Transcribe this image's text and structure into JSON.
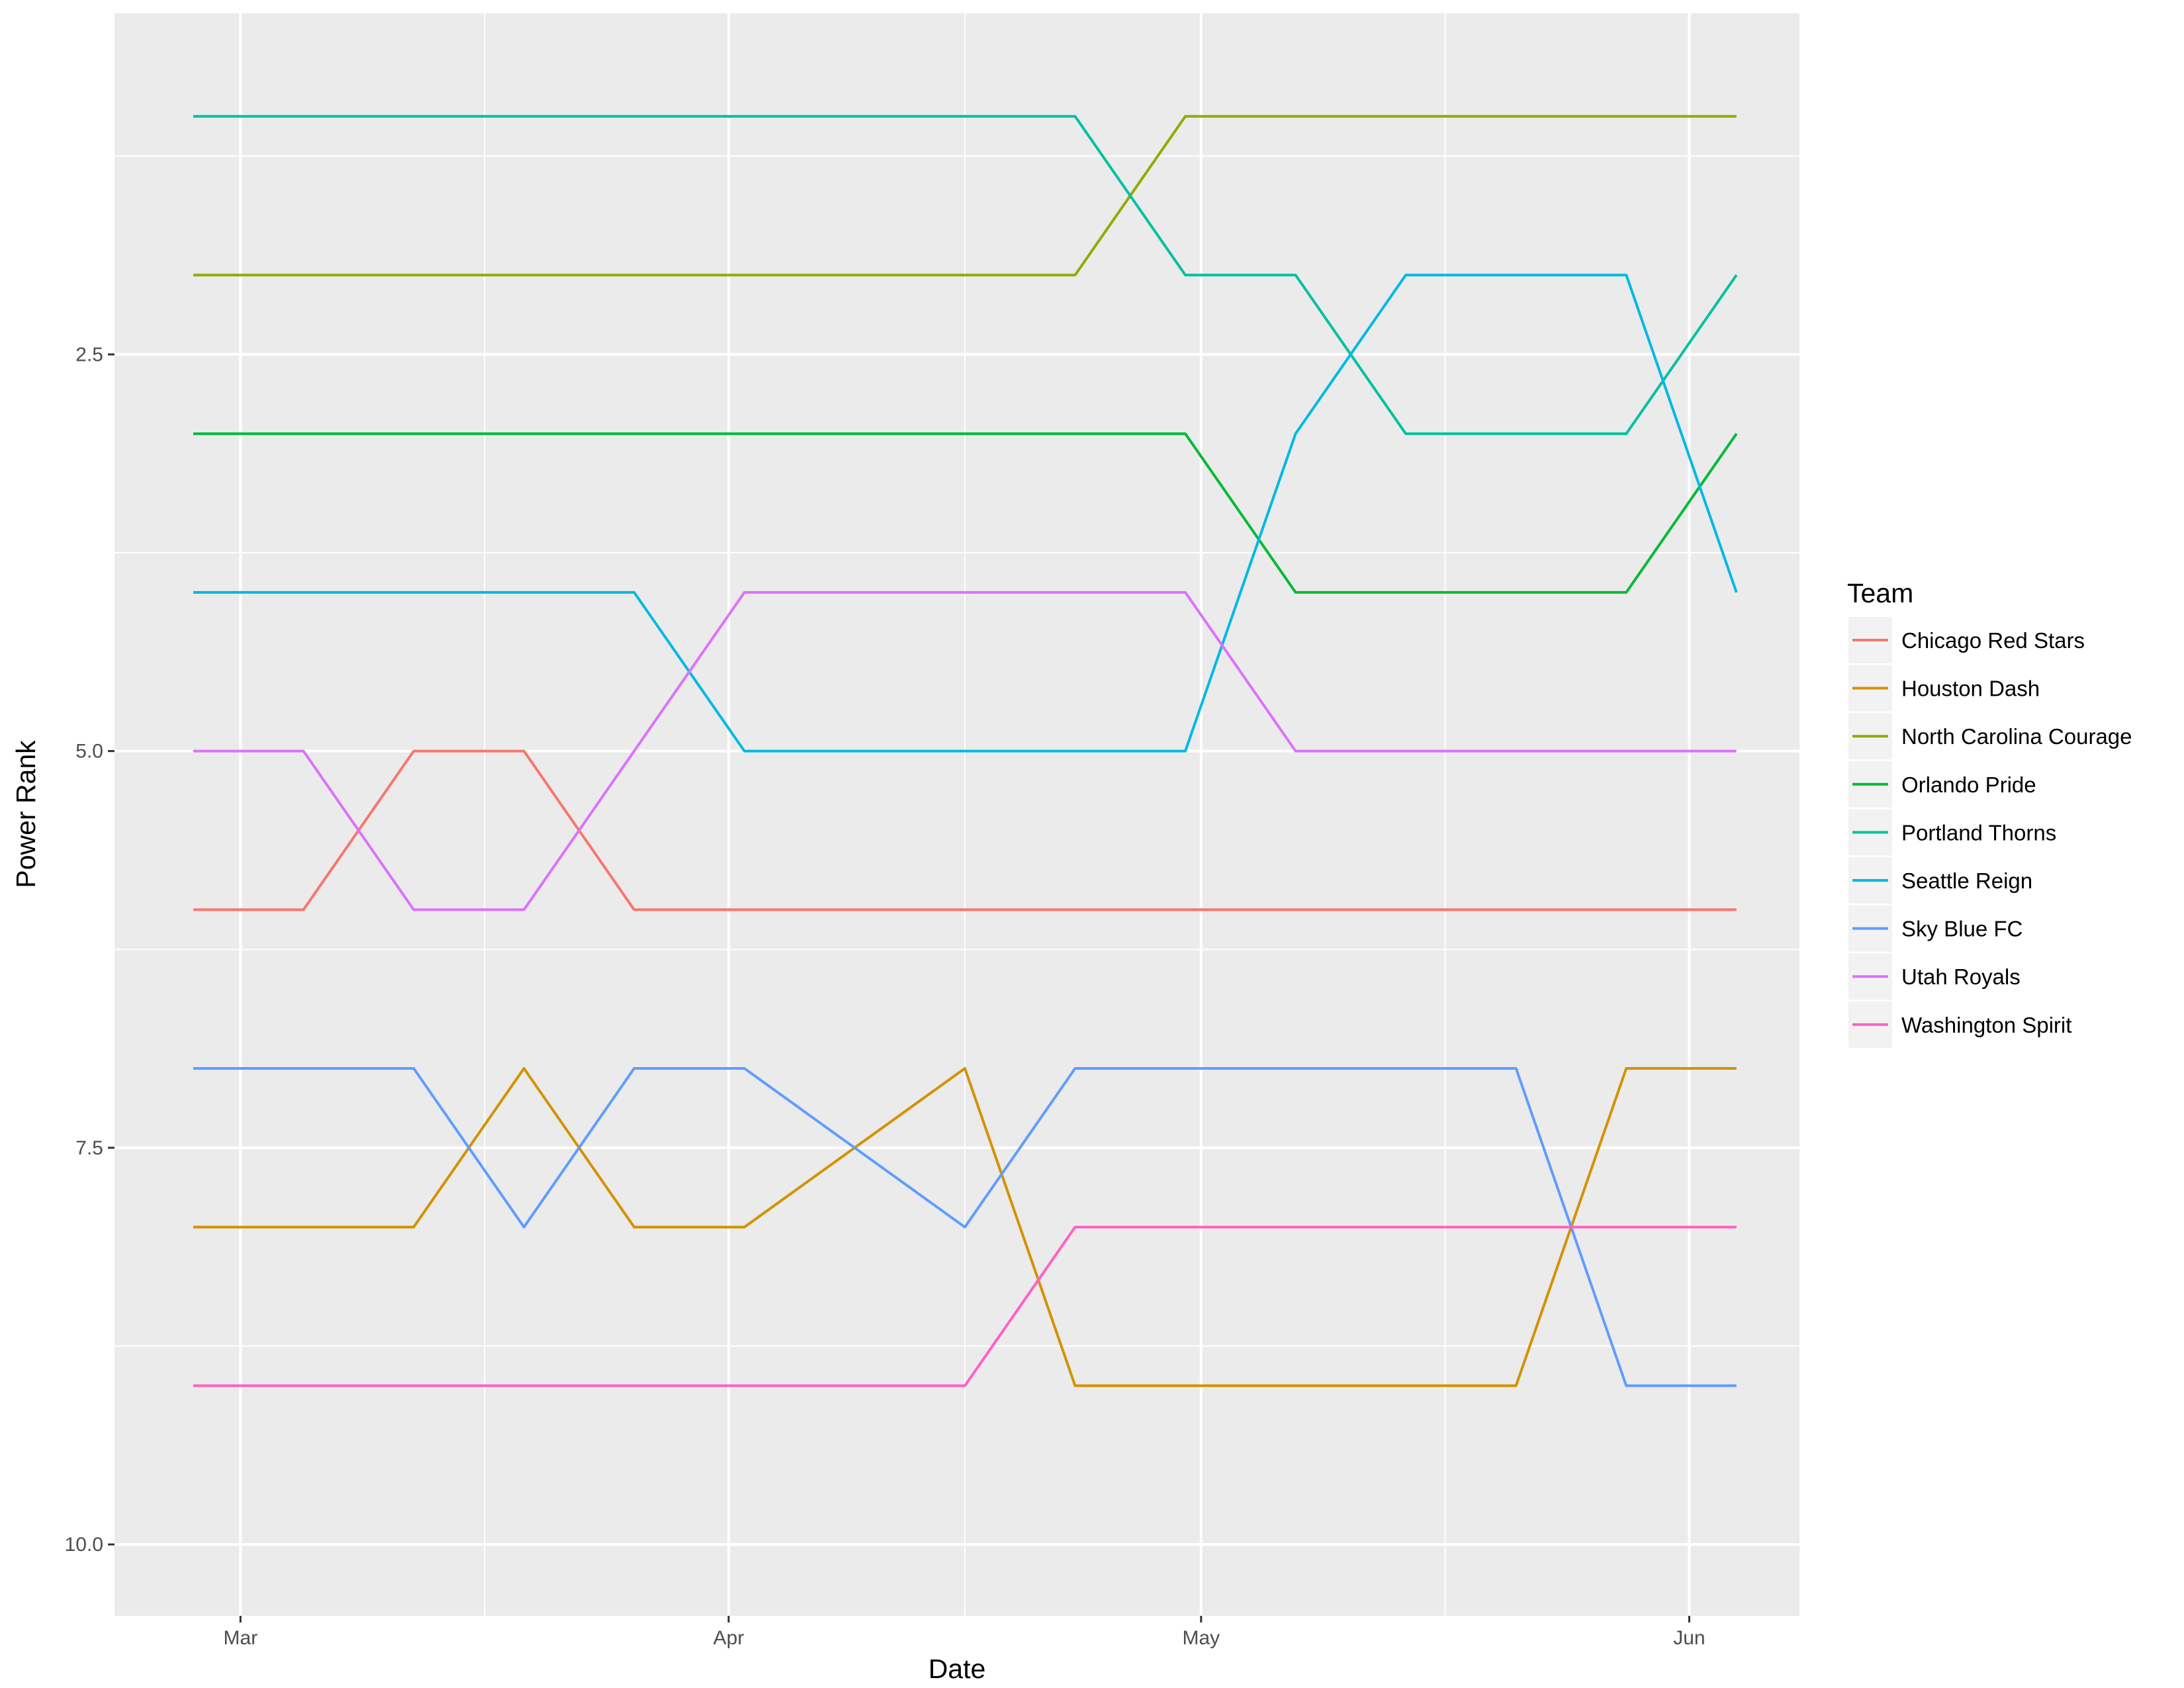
{
  "chart_data": {
    "type": "line",
    "xlabel": "Date",
    "ylabel": "Power Rank",
    "x_tick_labels": [
      "Mar",
      "Apr",
      "May",
      "Jun"
    ],
    "x_ticks": [
      "2018-03-01",
      "2018-04-01",
      "2018-05-01",
      "2018-06-01"
    ],
    "y_ticks": [
      2.5,
      5.0,
      7.5,
      10.0
    ],
    "y_tick_labels": [
      "2.5",
      "5.0",
      "7.5",
      "10.0"
    ],
    "y_reversed": true,
    "xlim": [
      "2018-02-21",
      "2018-06-08"
    ],
    "ylim": [
      0.35,
      10.45
    ],
    "grid": true,
    "legend_title": "Team",
    "legend_position": "right",
    "x": [
      "2018-02-26",
      "2018-03-05",
      "2018-03-12",
      "2018-03-19",
      "2018-03-26",
      "2018-04-02",
      "2018-04-09",
      "2018-04-16",
      "2018-04-23",
      "2018-04-30",
      "2018-05-07",
      "2018-05-14",
      "2018-05-21",
      "2018-05-28",
      "2018-06-04"
    ],
    "series": [
      {
        "name": "Chicago Red Stars",
        "color": "#F8766D",
        "values": [
          6,
          6,
          5,
          5,
          6,
          6,
          6,
          6,
          6,
          6,
          6,
          6,
          6,
          6,
          6
        ]
      },
      {
        "name": "Houston Dash",
        "color": "#D39200",
        "values": [
          8,
          8,
          8,
          7,
          8,
          8,
          7.5,
          7,
          9,
          9,
          9,
          9,
          9,
          7,
          7
        ]
      },
      {
        "name": "North Carolina Courage",
        "color": "#93AA00",
        "values": [
          2,
          2,
          2,
          2,
          2,
          2,
          2,
          2,
          2,
          1,
          1,
          1,
          1,
          1,
          1
        ]
      },
      {
        "name": "Orlando Pride",
        "color": "#00BA38",
        "values": [
          3,
          3,
          3,
          3,
          3,
          3,
          3,
          3,
          3,
          3,
          4,
          4,
          4,
          4,
          3
        ]
      },
      {
        "name": "Portland Thorns",
        "color": "#00C19F",
        "values": [
          1,
          1,
          1,
          1,
          1,
          1,
          1,
          1,
          1,
          2,
          2,
          3,
          3,
          3,
          2
        ]
      },
      {
        "name": "Seattle Reign",
        "color": "#00B9E3",
        "values": [
          4,
          4,
          4,
          4,
          4,
          5,
          5,
          5,
          5,
          5,
          3,
          2,
          2,
          2,
          4
        ]
      },
      {
        "name": "Sky Blue FC",
        "color": "#619CFF",
        "values": [
          7,
          7,
          7,
          8,
          7,
          7,
          7.5,
          8,
          7,
          7,
          7,
          7,
          7,
          9,
          9
        ]
      },
      {
        "name": "Utah Royals",
        "color": "#DB72FB",
        "values": [
          5,
          5,
          6,
          6,
          5,
          4,
          4,
          4,
          4,
          4,
          5,
          5,
          5,
          5,
          5
        ]
      },
      {
        "name": "Washington Spirit",
        "color": "#FF61C3",
        "values": [
          9,
          9,
          9,
          9,
          9,
          9,
          9,
          9,
          8,
          8,
          8,
          8,
          8,
          8,
          8
        ]
      }
    ]
  }
}
